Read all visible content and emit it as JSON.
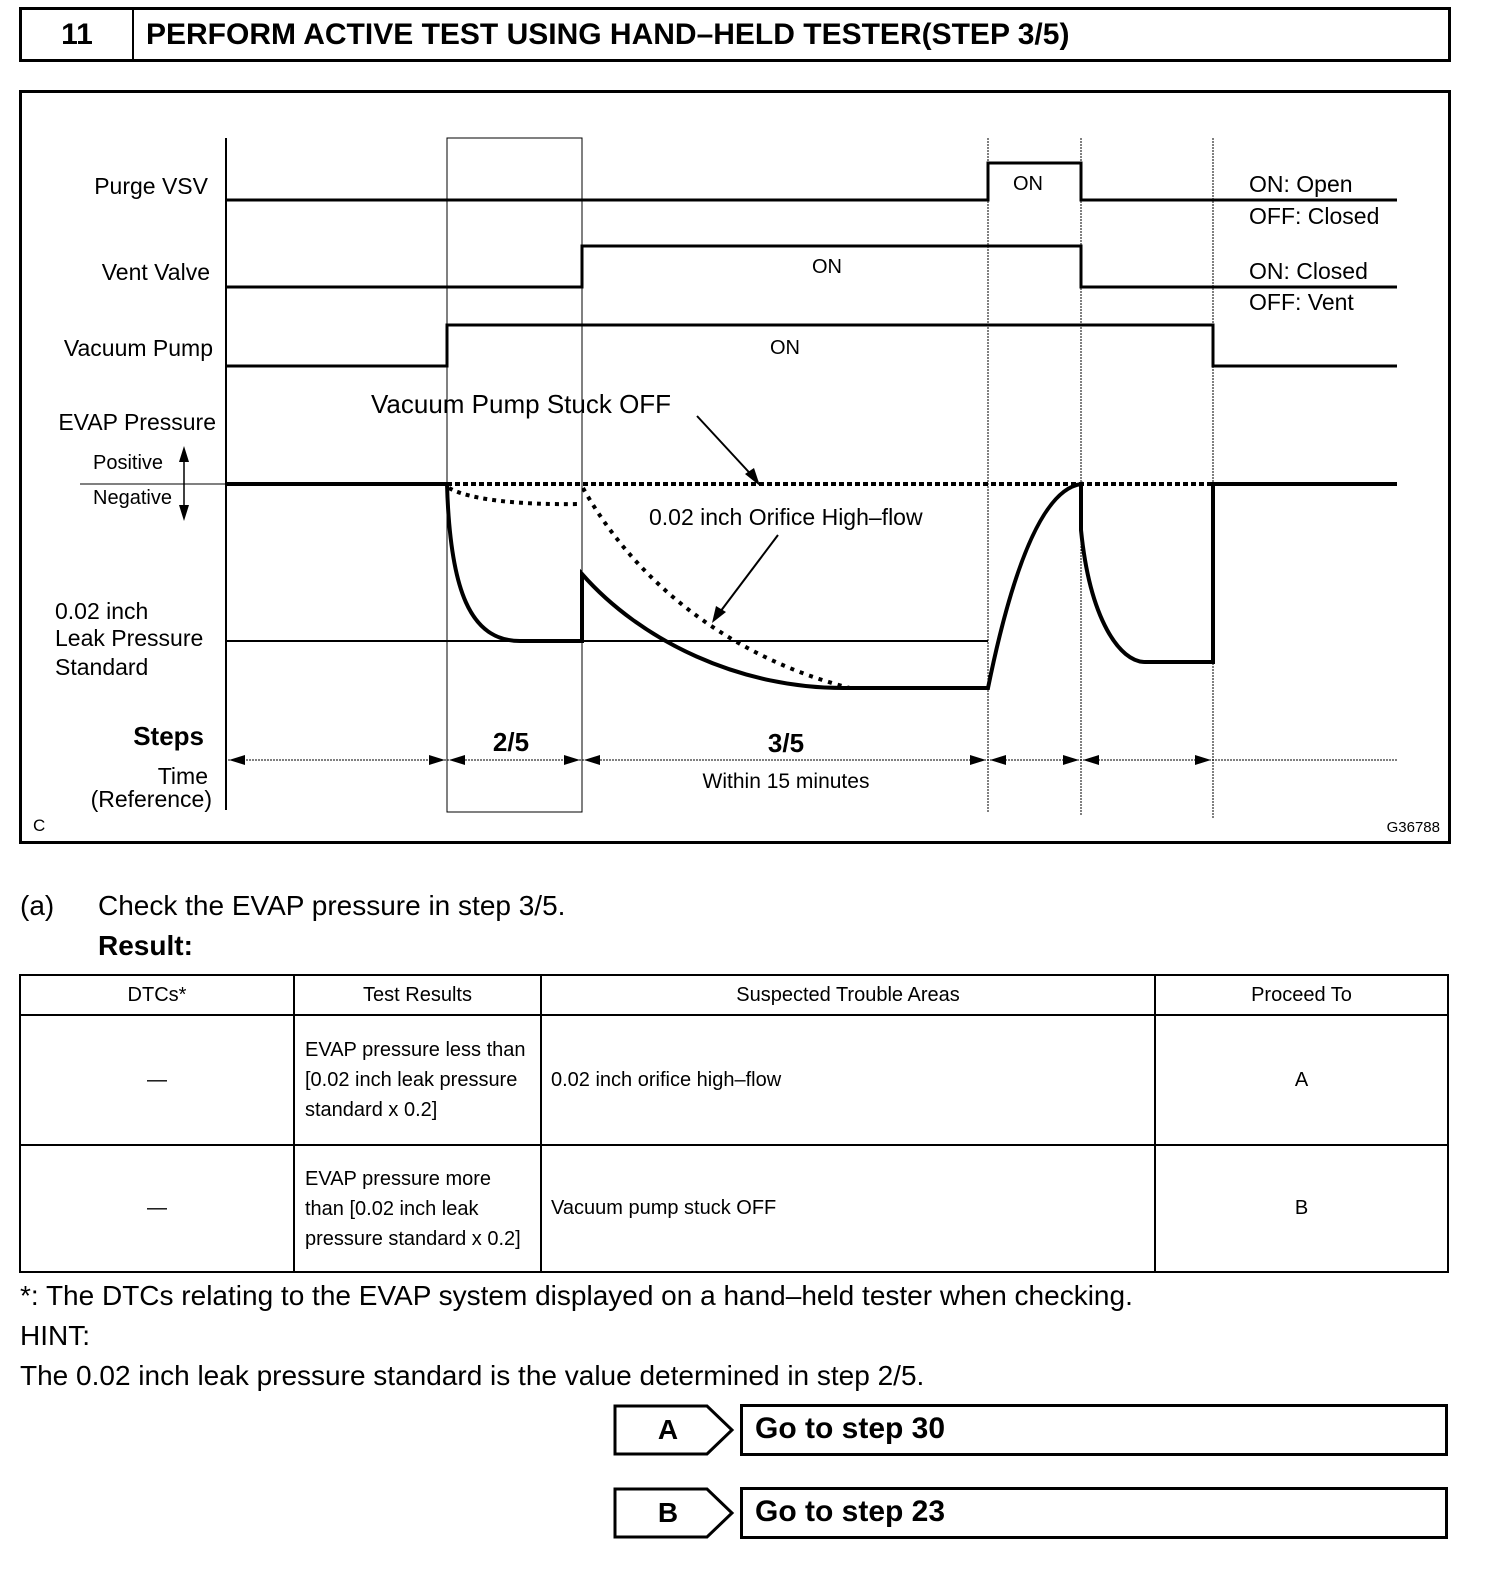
{
  "header": {
    "step_number": "11",
    "title": "PERFORM ACTIVE TEST USING HAND–HELD TESTER(STEP 3/5)"
  },
  "diagram": {
    "rows": {
      "purge_vsv": "Purge VSV",
      "vent_valve": "Vent Valve",
      "vacuum_pump": "Vacuum Pump",
      "evap_pressure": "EVAP Pressure",
      "positive": "Positive",
      "negative": "Negative",
      "leak_std_1": "0.02 inch",
      "leak_std_2": "Leak Pressure",
      "leak_std_3": "Standard",
      "steps": "Steps",
      "time_1": "Time",
      "time_2": "(Reference)"
    },
    "on_labels": {
      "purge": "ON",
      "vent": "ON",
      "pump": "ON"
    },
    "legends": {
      "purge_on": "ON: Open",
      "purge_off": "OFF: Closed",
      "vent_on": "ON: Closed",
      "vent_off": "OFF: Vent"
    },
    "annotations": {
      "stuck_off": "Vacuum Pump Stuck OFF",
      "orifice": "0.02 inch Orifice High–flow"
    },
    "steps": {
      "s2": "2/5",
      "s3": "3/5",
      "within": "Within 15 minutes"
    },
    "corner_left": "C",
    "figure_id": "G36788"
  },
  "instruction": {
    "marker": "(a)",
    "text": "Check the EVAP pressure in step 3/5.",
    "result_label": "Result:"
  },
  "table": {
    "headers": [
      "DTCs*",
      "Test Results",
      "Suspected Trouble Areas",
      "Proceed To"
    ],
    "rows": [
      {
        "dtc": "—",
        "result": "EVAP pressure less than [0.02 inch leak pressure standard x 0.2]",
        "area": "0.02 inch orifice high–flow",
        "proceed": "A"
      },
      {
        "dtc": "—",
        "result": "EVAP pressure more than [0.02 inch leak pressure standard x 0.2]",
        "area": "Vacuum pump stuck OFF",
        "proceed": "B"
      }
    ]
  },
  "footnote": "*: The DTCs relating to the EVAP system displayed on a hand–held tester when checking.",
  "hint_label": "HINT:",
  "hint_text": "The 0.02 inch leak pressure standard is the value determined in step 2/5.",
  "actions": [
    {
      "letter": "A",
      "label": "Go to step 30"
    },
    {
      "letter": "B",
      "label": "Go to step 23"
    }
  ]
}
